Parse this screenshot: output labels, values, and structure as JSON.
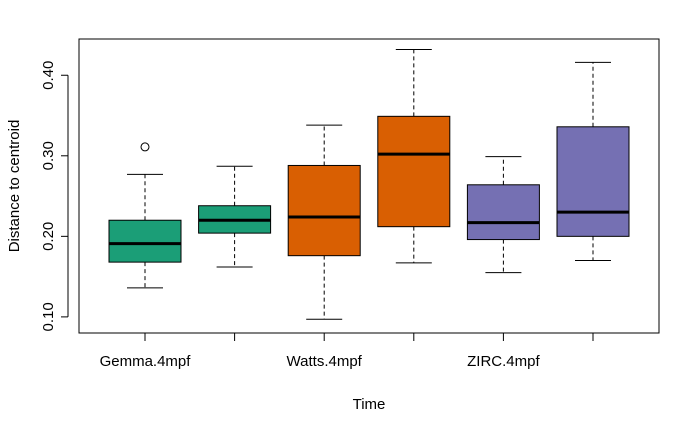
{
  "chart_data": {
    "type": "box",
    "title": "",
    "xlabel": "Time",
    "ylabel": "Distance to centroid",
    "ylim": [
      0.08,
      0.445
    ],
    "y_ticks": [
      0.1,
      0.2,
      0.3,
      0.4
    ],
    "y_tick_labels": [
      "0.10",
      "0.20",
      "0.30",
      "0.40"
    ],
    "x_tick_labels": [
      "Gemma.4mpf",
      "",
      "Watts.4mpf",
      "",
      "ZIRC.4mpf",
      ""
    ],
    "grid": false,
    "legend": "none",
    "boxes": [
      {
        "q1": 0.168,
        "median": 0.191,
        "q3": 0.22,
        "whisker_low": 0.136,
        "whisker_high": 0.277,
        "outliers": [
          0.311
        ],
        "color": "#1B9E77"
      },
      {
        "q1": 0.204,
        "median": 0.22,
        "q3": 0.238,
        "whisker_low": 0.162,
        "whisker_high": 0.287,
        "outliers": [],
        "color": "#1B9E77"
      },
      {
        "q1": 0.176,
        "median": 0.224,
        "q3": 0.288,
        "whisker_low": 0.097,
        "whisker_high": 0.338,
        "outliers": [],
        "color": "#D95F02"
      },
      {
        "q1": 0.212,
        "median": 0.302,
        "q3": 0.349,
        "whisker_low": 0.167,
        "whisker_high": 0.432,
        "outliers": [],
        "color": "#D95F02"
      },
      {
        "q1": 0.196,
        "median": 0.217,
        "q3": 0.264,
        "whisker_low": 0.155,
        "whisker_high": 0.299,
        "outliers": [],
        "color": "#7570B3"
      },
      {
        "q1": 0.2,
        "median": 0.23,
        "q3": 0.336,
        "whisker_low": 0.17,
        "whisker_high": 0.416,
        "outliers": [],
        "color": "#7570B3"
      }
    ]
  }
}
